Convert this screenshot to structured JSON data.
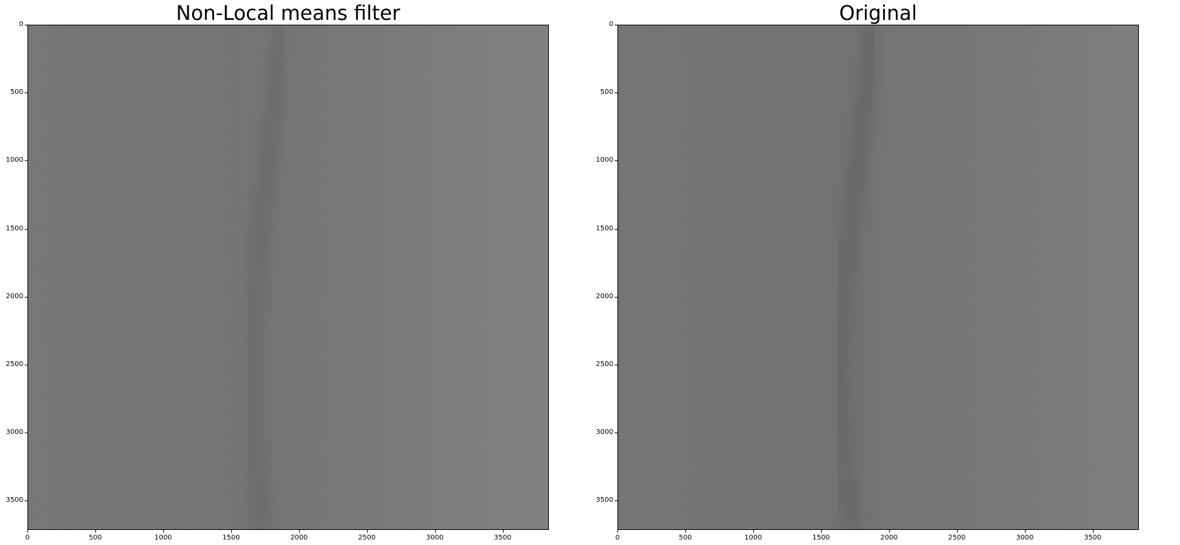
{
  "figure": {
    "panels": [
      {
        "title": "Non-Local means filter",
        "x_ticks": [
          "0",
          "500",
          "1000",
          "1500",
          "2000",
          "2500",
          "3000",
          "3500"
        ],
        "y_ticks": [
          "0",
          "500",
          "1000",
          "1500",
          "2000",
          "2500",
          "3000",
          "3500"
        ],
        "x_range": [
          0,
          3840
        ],
        "y_range": [
          0,
          3715
        ],
        "tick_values": [
          0,
          500,
          1000,
          1500,
          2000,
          2500,
          3000,
          3500
        ]
      },
      {
        "title": "Original",
        "x_ticks": [
          "0",
          "500",
          "1000",
          "1500",
          "2000",
          "2500",
          "3000",
          "3500"
        ],
        "y_ticks": [
          "0",
          "500",
          "1000",
          "1500",
          "2000",
          "2500",
          "3000",
          "3500"
        ],
        "x_range": [
          0,
          3840
        ],
        "y_range": [
          0,
          3715
        ],
        "tick_values": [
          0,
          500,
          1000,
          1500,
          2000,
          2500,
          3000,
          3500
        ]
      }
    ]
  }
}
